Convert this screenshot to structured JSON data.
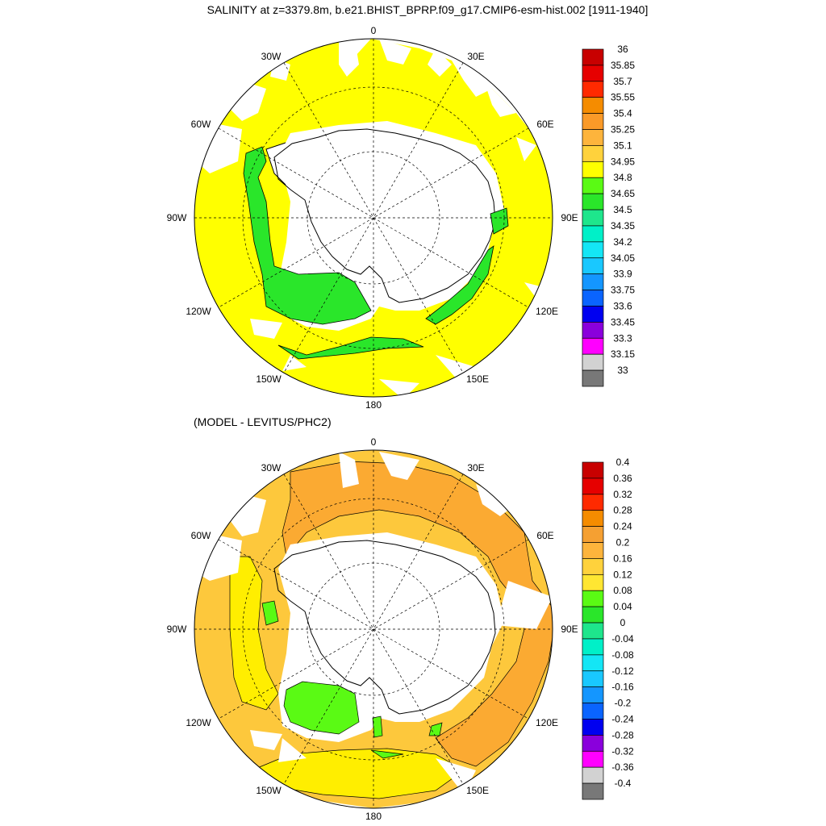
{
  "figure": {
    "title": "SALINITY at z=3379.8m, b.e21.BHIST_BPRP.f09_g17.CMIP6-esm-hist.002 [1911-1940]",
    "subtitle": "(MODEL - LEVITUS/PHC2)"
  },
  "longitude_labels": [
    "0",
    "30E",
    "60E",
    "90E",
    "120E",
    "150E",
    "180",
    "150W",
    "120W",
    "90W",
    "60W",
    "30W"
  ],
  "colors": {
    "land": "#ffffff",
    "coast": "#000000",
    "grid": "#000000",
    "bg": "#ffffff"
  },
  "panels": [
    {
      "id": "salinity",
      "colorbar": {
        "labels": [
          "36",
          "35.85",
          "35.7",
          "35.55",
          "35.4",
          "35.25",
          "35.1",
          "34.95",
          "34.8",
          "34.65",
          "34.5",
          "34.35",
          "34.2",
          "34.05",
          "33.9",
          "33.75",
          "33.6",
          "33.45",
          "33.3",
          "33.15",
          "33"
        ],
        "colors": [
          "#c80000",
          "#e60000",
          "#ff2a00",
          "#f58c00",
          "#fa9a28",
          "#fdb43c",
          "#ffd23c",
          "#ffff00",
          "#5afa14",
          "#2ae62a",
          "#1ee68c",
          "#00f0c8",
          "#14e6f5",
          "#19c8ff",
          "#1496ff",
          "#0a64ff",
          "#0000f0",
          "#8a00dc",
          "#ff00ff",
          "#d2d2d2",
          "#787878"
        ]
      },
      "regions": [
        {
          "name": "north-yellow",
          "color": "#ffff00"
        },
        {
          "name": "west-green",
          "color": "#2ae62a"
        },
        {
          "name": "east-green",
          "color": "#2ae62a"
        }
      ]
    },
    {
      "id": "difference",
      "colorbar": {
        "labels": [
          "0.4",
          "0.36",
          "0.32",
          "0.28",
          "0.24",
          "0.2",
          "0.16",
          "0.12",
          "0.08",
          "0.04",
          "0",
          "-0.04",
          "-0.08",
          "-0.12",
          "-0.16",
          "-0.2",
          "-0.24",
          "-0.28",
          "-0.32",
          "-0.36",
          "-0.4"
        ],
        "colors": [
          "#c80000",
          "#e60000",
          "#ff2a00",
          "#f58c00",
          "#f5a032",
          "#fdb43c",
          "#ffd23c",
          "#ffe632",
          "#5afa14",
          "#2ae62a",
          "#1ee68c",
          "#00f0c8",
          "#14e6f5",
          "#19c8ff",
          "#1496ff",
          "#0a64ff",
          "#0000f0",
          "#8a00dc",
          "#ff00ff",
          "#d2d2d2",
          "#787878"
        ]
      },
      "regions": [
        {
          "name": "orange-band",
          "color": "#fbaa32"
        },
        {
          "name": "yellow-west",
          "color": "#ffee00"
        },
        {
          "name": "green-ross",
          "color": "#5afa14"
        }
      ]
    }
  ]
}
